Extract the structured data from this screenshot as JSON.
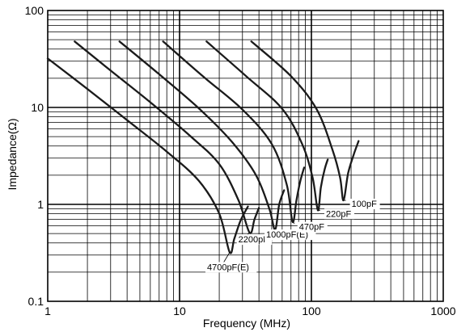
{
  "chart_data": {
    "type": "line",
    "title": "",
    "xlabel": "Frequency (MHz)",
    "ylabel": "Impedance(Ω)",
    "x_scale": "log",
    "y_scale": "log",
    "xlim": [
      1,
      1000
    ],
    "ylim": [
      0.1,
      100
    ],
    "grid": true,
    "x_ticks": [
      {
        "value": 1,
        "label": "1"
      },
      {
        "value": 10,
        "label": "10"
      },
      {
        "value": 100,
        "label": "100"
      },
      {
        "value": 1000,
        "label": "1000"
      }
    ],
    "y_ticks": [
      {
        "value": 0.1,
        "label": "0.1"
      },
      {
        "value": 1,
        "label": "1"
      },
      {
        "value": 10,
        "label": "10"
      },
      {
        "value": 100,
        "label": "100"
      }
    ],
    "series": [
      {
        "name": "4700pF(E)",
        "color": "#1a1a1a",
        "points": [
          [
            1,
            32
          ],
          [
            2,
            15.5
          ],
          [
            4,
            7.4
          ],
          [
            8,
            3.5
          ],
          [
            14,
            1.75
          ],
          [
            20,
            0.8
          ],
          [
            24,
            0.32
          ],
          [
            26,
            0.44
          ],
          [
            29,
            0.68
          ],
          [
            33,
            0.95
          ]
        ]
      },
      {
        "name": "2200pF",
        "color": "#1a1a1a",
        "points": [
          [
            1.6,
            48
          ],
          [
            3,
            24
          ],
          [
            6,
            11.3
          ],
          [
            12,
            5.1
          ],
          [
            20,
            2.6
          ],
          [
            28,
            1.1
          ],
          [
            34,
            0.51
          ],
          [
            37,
            0.7
          ],
          [
            40,
            0.92
          ]
        ]
      },
      {
        "name": "1000pF(E)",
        "color": "#1a1a1a",
        "points": [
          [
            3.5,
            48
          ],
          [
            7,
            22
          ],
          [
            14,
            9.8
          ],
          [
            25,
            4.4
          ],
          [
            38,
            2.0
          ],
          [
            48,
            0.9
          ],
          [
            53,
            0.55
          ],
          [
            57,
            1.0
          ],
          [
            62,
            1.4
          ]
        ]
      },
      {
        "name": "470pF",
        "color": "#1a1a1a",
        "points": [
          [
            7.5,
            48
          ],
          [
            15,
            21
          ],
          [
            30,
            9.5
          ],
          [
            50,
            4.2
          ],
          [
            65,
            1.6
          ],
          [
            72,
            0.66
          ],
          [
            77,
            1.1
          ],
          [
            82,
            1.7
          ],
          [
            88,
            2.4
          ]
        ]
      },
      {
        "name": "220pF",
        "color": "#1a1a1a",
        "points": [
          [
            16,
            48
          ],
          [
            32,
            21
          ],
          [
            60,
            9.7
          ],
          [
            85,
            4.2
          ],
          [
            102,
            1.9
          ],
          [
            112,
            0.87
          ],
          [
            118,
            1.5
          ],
          [
            126,
            2.3
          ],
          [
            133,
            2.9
          ]
        ]
      },
      {
        "name": "100pF",
        "color": "#1a1a1a",
        "points": [
          [
            35,
            48
          ],
          [
            70,
            21
          ],
          [
            110,
            9.5
          ],
          [
            145,
            3.6
          ],
          [
            165,
            1.9
          ],
          [
            175,
            1.1
          ],
          [
            190,
            2.1
          ],
          [
            210,
            3.3
          ],
          [
            228,
            4.5
          ]
        ]
      }
    ],
    "annotations": [
      {
        "text": "4700pF(E)",
        "series": "4700pF(E)"
      },
      {
        "text": "2200pF",
        "series": "2200pF"
      },
      {
        "text": "1000pF(E)",
        "series": "1000pF(E)"
      },
      {
        "text": "470pF",
        "series": "470pF"
      },
      {
        "text": "220pF",
        "series": "220pF"
      },
      {
        "text": "100pF",
        "series": "100pF"
      }
    ]
  }
}
